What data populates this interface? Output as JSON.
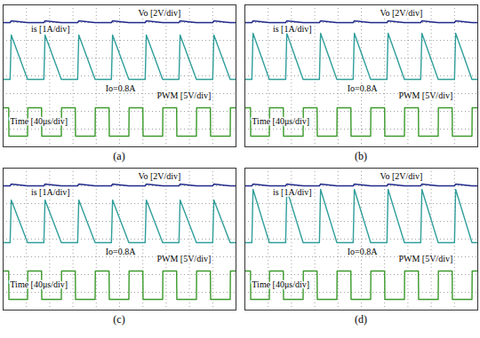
{
  "chart_data": [
    {
      "type": "line",
      "title": "(a)",
      "grid": true,
      "tick_labels": false,
      "xlim": [
        0,
        10
      ],
      "ylim": [
        0,
        8
      ],
      "xticks": [
        0,
        1,
        2,
        3,
        4,
        5,
        6,
        7,
        8,
        9,
        10
      ],
      "yticks": [
        0,
        1,
        2,
        3,
        4,
        5,
        6,
        7,
        8
      ],
      "annotations": [
        "Vo [2V/div]",
        "is [1A/div]",
        "Io=0.8A",
        "PWM [5V/div]",
        "Time [40μs/div]"
      ],
      "x": [
        0,
        0.24,
        0.25,
        0.3,
        0.35,
        1.05,
        1.06,
        1.65,
        1.66,
        1.75,
        1.8,
        2.5,
        2.51,
        3.1,
        3.11,
        3.2,
        3.25,
        3.95,
        3.96,
        4.55,
        4.56,
        4.65,
        4.7,
        5.4,
        5.41,
        6.0,
        6.01,
        6.1,
        6.15,
        6.85,
        6.86,
        7.45,
        7.46,
        7.55,
        7.6,
        8.3,
        8.31,
        8.9,
        8.91,
        9.0,
        9.05,
        9.75,
        9.76,
        10
      ],
      "series": [
        {
          "name": "Vo",
          "color": "#1f2a8a",
          "values": [
            7,
            7,
            7,
            7,
            7.1,
            7,
            7,
            7,
            7,
            7,
            7.1,
            7,
            7,
            7,
            7,
            7,
            7.1,
            7,
            7,
            7,
            7,
            7,
            7.1,
            7,
            7,
            7,
            7,
            7,
            7.1,
            7,
            7,
            7,
            7,
            7,
            7.1,
            7,
            7,
            7,
            7,
            7,
            7.1,
            7,
            7,
            7
          ]
        },
        {
          "name": "is",
          "color": "#2f9e9a",
          "values": [
            3.8,
            3.8,
            3.8,
            3.8,
            6.3,
            3.8,
            3.8,
            3.8,
            3.8,
            3.8,
            6.3,
            3.8,
            3.8,
            3.8,
            3.8,
            3.8,
            6.3,
            3.8,
            3.8,
            3.8,
            3.8,
            3.8,
            6.3,
            3.8,
            3.8,
            3.8,
            3.8,
            3.8,
            6.3,
            3.8,
            3.8,
            3.8,
            3.8,
            3.8,
            6.3,
            3.8,
            3.8,
            3.8,
            3.8,
            3.8,
            6.3,
            3.8,
            3.8,
            3.8
          ]
        },
        {
          "name": "PWM",
          "color": "#3c9a2c",
          "values": [
            2.2,
            2.2,
            0.6,
            0.6,
            0.6,
            0.6,
            2.2,
            2.2,
            0.6,
            0.6,
            0.6,
            0.6,
            2.2,
            2.2,
            0.6,
            0.6,
            0.6,
            0.6,
            2.2,
            2.2,
            0.6,
            0.6,
            0.6,
            0.6,
            2.2,
            2.2,
            0.6,
            0.6,
            0.6,
            0.6,
            2.2,
            2.2,
            0.6,
            0.6,
            0.6,
            0.6,
            2.2,
            2.2,
            0.6,
            0.6,
            0.6,
            0.6,
            2.2,
            2.2
          ]
        }
      ]
    },
    {
      "type": "line",
      "title": "(b)",
      "grid": true,
      "tick_labels": false,
      "xlim": [
        0,
        10
      ],
      "ylim": [
        0,
        8
      ],
      "xticks": [
        0,
        1,
        2,
        3,
        4,
        5,
        6,
        7,
        8,
        9,
        10
      ],
      "yticks": [
        0,
        1,
        2,
        3,
        4,
        5,
        6,
        7,
        8
      ],
      "annotations": [
        "Vo [2V/div]",
        "is [1A/div]",
        "Io=0.8A",
        "PWM [5V/div]",
        "Time [40μs/div]"
      ],
      "x": [
        0,
        0.24,
        0.25,
        0.3,
        0.35,
        1.05,
        1.06,
        1.65,
        1.66,
        1.75,
        1.8,
        2.5,
        2.51,
        3.1,
        3.11,
        3.2,
        3.25,
        3.95,
        3.96,
        4.55,
        4.56,
        4.65,
        4.7,
        5.4,
        5.41,
        6.0,
        6.01,
        6.1,
        6.15,
        6.85,
        6.86,
        7.45,
        7.46,
        7.55,
        7.6,
        8.3,
        8.31,
        8.9,
        8.91,
        9.0,
        9.05,
        9.75,
        9.76,
        10
      ],
      "series": [
        {
          "name": "Vo",
          "color": "#1f2a8a",
          "values": [
            7,
            7,
            7,
            7,
            7.1,
            7,
            7,
            7,
            7,
            7,
            7.1,
            7,
            7,
            7,
            7,
            7,
            7.1,
            7,
            7,
            7,
            7,
            7,
            7.1,
            7,
            7,
            7,
            7,
            7,
            7.1,
            7,
            7,
            7,
            7,
            7,
            7.1,
            7,
            7,
            7,
            7,
            7,
            7.1,
            7,
            7,
            7
          ]
        },
        {
          "name": "is",
          "color": "#2f9e9a",
          "values": [
            3.8,
            3.8,
            3.8,
            3.8,
            6.4,
            3.8,
            3.8,
            3.8,
            3.8,
            3.8,
            6.4,
            3.8,
            3.8,
            3.8,
            3.8,
            3.8,
            6.4,
            3.8,
            3.8,
            3.8,
            3.8,
            3.8,
            6.4,
            3.8,
            3.8,
            3.8,
            3.8,
            3.8,
            6.4,
            3.8,
            3.8,
            3.8,
            3.8,
            3.8,
            6.4,
            3.8,
            3.8,
            3.8,
            3.8,
            3.8,
            6.4,
            3.8,
            3.8,
            3.8
          ]
        },
        {
          "name": "PWM",
          "color": "#3c9a2c",
          "values": [
            2.2,
            2.2,
            0.6,
            0.6,
            0.6,
            0.6,
            2.2,
            2.2,
            0.6,
            0.6,
            0.6,
            0.6,
            2.2,
            2.2,
            0.6,
            0.6,
            0.6,
            0.6,
            2.2,
            2.2,
            0.6,
            0.6,
            0.6,
            0.6,
            2.2,
            2.2,
            0.6,
            0.6,
            0.6,
            0.6,
            2.2,
            2.2,
            0.6,
            0.6,
            0.6,
            0.6,
            2.2,
            2.2,
            0.6,
            0.6,
            0.6,
            0.6,
            2.2,
            2.2
          ]
        }
      ]
    },
    {
      "type": "line",
      "title": "(c)",
      "grid": true,
      "tick_labels": false,
      "xlim": [
        0,
        10
      ],
      "ylim": [
        0,
        8
      ],
      "xticks": [
        0,
        1,
        2,
        3,
        4,
        5,
        6,
        7,
        8,
        9,
        10
      ],
      "yticks": [
        0,
        1,
        2,
        3,
        4,
        5,
        6,
        7,
        8
      ],
      "annotations": [
        "Vo [2V/div]",
        "is [1A/div]",
        "Io=0.8A",
        "PWM [5V/div]",
        "Time [40μs/div]"
      ],
      "x": [
        0,
        0.24,
        0.25,
        0.3,
        0.35,
        1.05,
        1.06,
        1.65,
        1.66,
        1.75,
        1.8,
        2.5,
        2.51,
        3.1,
        3.11,
        3.2,
        3.25,
        3.95,
        3.96,
        4.55,
        4.56,
        4.65,
        4.7,
        5.4,
        5.41,
        6.0,
        6.01,
        6.1,
        6.15,
        6.85,
        6.86,
        7.45,
        7.46,
        7.55,
        7.6,
        8.3,
        8.31,
        8.9,
        8.91,
        9.0,
        9.05,
        9.75,
        9.76,
        10
      ],
      "series": [
        {
          "name": "Vo",
          "color": "#1f2a8a",
          "values": [
            7,
            7,
            7,
            7,
            7.1,
            7,
            7,
            7,
            7,
            7,
            7.1,
            7,
            7,
            7,
            7,
            7,
            7.1,
            7,
            7,
            7,
            7,
            7,
            7.1,
            7,
            7,
            7,
            7,
            7,
            7.1,
            7,
            7,
            7,
            7,
            7,
            7.1,
            7,
            7,
            7,
            7,
            7,
            7.1,
            7,
            7,
            7
          ]
        },
        {
          "name": "is",
          "color": "#2f9e9a",
          "values": [
            3.8,
            3.8,
            3.8,
            3.8,
            6.2,
            3.8,
            3.8,
            3.8,
            3.8,
            3.8,
            6.2,
            3.8,
            3.8,
            3.8,
            3.8,
            3.8,
            6.2,
            3.8,
            3.8,
            3.8,
            3.8,
            3.8,
            6.2,
            3.8,
            3.8,
            3.8,
            3.8,
            3.8,
            6.2,
            3.8,
            3.8,
            3.8,
            3.8,
            3.8,
            6.2,
            3.8,
            3.8,
            3.8,
            3.8,
            3.8,
            6.2,
            3.8,
            3.8,
            3.8
          ]
        },
        {
          "name": "PWM",
          "color": "#3c9a2c",
          "values": [
            2.2,
            2.2,
            0.6,
            0.6,
            0.6,
            0.6,
            2.2,
            2.2,
            0.6,
            0.6,
            0.6,
            0.6,
            2.2,
            2.2,
            0.6,
            0.6,
            0.6,
            0.6,
            2.2,
            2.2,
            0.6,
            0.6,
            0.6,
            0.6,
            2.2,
            2.2,
            0.6,
            0.6,
            0.6,
            0.6,
            2.2,
            2.2,
            0.6,
            0.6,
            0.6,
            0.6,
            2.2,
            2.2,
            0.6,
            0.6,
            0.6,
            0.6,
            2.2,
            2.2
          ]
        }
      ]
    },
    {
      "type": "line",
      "title": "(d)",
      "grid": true,
      "tick_labels": false,
      "xlim": [
        0,
        10
      ],
      "ylim": [
        0,
        8
      ],
      "xticks": [
        0,
        1,
        2,
        3,
        4,
        5,
        6,
        7,
        8,
        9,
        10
      ],
      "yticks": [
        0,
        1,
        2,
        3,
        4,
        5,
        6,
        7,
        8
      ],
      "annotations": [
        "Vo [2V/div]",
        "is [1A/div]",
        "Io=0.8A",
        "PWM [5V/div]",
        "Time [40μs/div]"
      ],
      "x": [
        0,
        0.24,
        0.25,
        0.3,
        0.35,
        1.05,
        1.06,
        1.65,
        1.66,
        1.75,
        1.8,
        2.5,
        2.51,
        3.1,
        3.11,
        3.2,
        3.25,
        3.95,
        3.96,
        4.55,
        4.56,
        4.65,
        4.7,
        5.4,
        5.41,
        6.0,
        6.01,
        6.1,
        6.15,
        6.85,
        6.86,
        7.45,
        7.46,
        7.55,
        7.6,
        8.3,
        8.31,
        8.9,
        8.91,
        9.0,
        9.05,
        9.75,
        9.76,
        10
      ],
      "series": [
        {
          "name": "Vo",
          "color": "#1f2a8a",
          "values": [
            7,
            7,
            7,
            7,
            7.1,
            7,
            7,
            7,
            7,
            7,
            7.1,
            7,
            7,
            7,
            7,
            7,
            7.1,
            7,
            7,
            7,
            7,
            7,
            7.1,
            7,
            7,
            7,
            7,
            7,
            7.1,
            7,
            7,
            7,
            7,
            7,
            7.1,
            7,
            7,
            7,
            7,
            7,
            7.1,
            7,
            7,
            7
          ]
        },
        {
          "name": "is",
          "color": "#2f9e9a",
          "values": [
            3.8,
            3.8,
            3.8,
            3.8,
            6.8,
            3.8,
            3.8,
            3.8,
            3.8,
            3.8,
            6.8,
            3.8,
            3.8,
            3.8,
            3.8,
            3.8,
            6.8,
            3.8,
            3.8,
            3.8,
            3.8,
            3.8,
            6.8,
            3.8,
            3.8,
            3.8,
            3.8,
            3.8,
            6.8,
            3.8,
            3.8,
            3.8,
            3.8,
            3.8,
            6.8,
            3.8,
            3.8,
            3.8,
            3.8,
            3.8,
            6.8,
            3.8,
            3.8,
            3.8
          ]
        },
        {
          "name": "PWM",
          "color": "#3c9a2c",
          "values": [
            2.2,
            2.2,
            0.6,
            0.6,
            0.6,
            0.6,
            2.2,
            2.2,
            0.6,
            0.6,
            0.6,
            0.6,
            2.2,
            2.2,
            0.6,
            0.6,
            0.6,
            0.6,
            2.2,
            2.2,
            0.6,
            0.6,
            0.6,
            0.6,
            2.2,
            2.2,
            0.6,
            0.6,
            0.6,
            0.6,
            2.2,
            2.2,
            0.6,
            0.6,
            0.6,
            0.6,
            2.2,
            2.2,
            0.6,
            0.6,
            0.6,
            0.6,
            2.2,
            2.2
          ]
        }
      ]
    }
  ]
}
